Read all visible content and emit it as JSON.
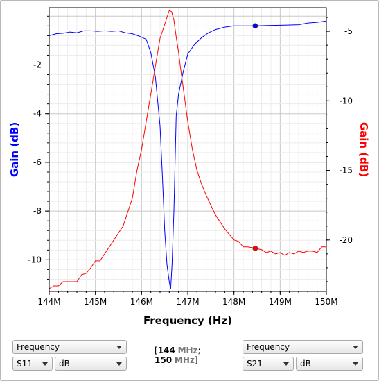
{
  "chart_data": {
    "type": "line",
    "xlabel": "Frequency (Hz)",
    "xlim": [
      144,
      150
    ],
    "x_ticks": [
      "144M",
      "145M",
      "146M",
      "147M",
      "148M",
      "149M",
      "150M"
    ],
    "y_left": {
      "label": "Gain (dB)",
      "color": "#0000ff",
      "lim": [
        -11.3,
        0.35
      ],
      "ticks": [
        "-2",
        "-4",
        "-6",
        "-8",
        "-10"
      ]
    },
    "y_right": {
      "label": "Gain (dB)",
      "color": "#ff0000",
      "lim": [
        -23.7,
        -3.3
      ],
      "ticks": [
        "-5",
        "-10",
        "-15",
        "-20"
      ]
    },
    "grid": true,
    "series": [
      {
        "axis": "left",
        "color": "#0000ff",
        "x": [
          144,
          144.15,
          144.3,
          144.45,
          144.6,
          144.75,
          144.9,
          145.05,
          145.2,
          145.35,
          145.5,
          145.65,
          145.8,
          145.95,
          146.1,
          146.2,
          146.3,
          146.4,
          146.45,
          146.5,
          146.55,
          146.6,
          146.63,
          146.66,
          146.7,
          146.75,
          146.8,
          146.9,
          147.0,
          147.15,
          147.3,
          147.45,
          147.6,
          147.8,
          148.0,
          148.2,
          148.46,
          148.8,
          149.1,
          149.4,
          149.6,
          149.8,
          150.0
        ],
        "y": [
          -0.8,
          -0.72,
          -0.7,
          -0.65,
          -0.68,
          -0.6,
          -0.6,
          -0.62,
          -0.6,
          -0.62,
          -0.6,
          -0.68,
          -0.72,
          -0.82,
          -0.95,
          -1.5,
          -2.5,
          -4.5,
          -6.5,
          -8.8,
          -10.2,
          -10.9,
          -11.2,
          -10.2,
          -8.0,
          -4.1,
          -3.2,
          -2.3,
          -1.55,
          -1.15,
          -0.88,
          -0.68,
          -0.55,
          -0.45,
          -0.4,
          -0.4,
          -0.4,
          -0.38,
          -0.37,
          -0.35,
          -0.28,
          -0.25,
          -0.2
        ]
      },
      {
        "axis": "right",
        "color": "#ff0000",
        "x": [
          144,
          144.1,
          144.2,
          144.3,
          144.4,
          144.5,
          144.6,
          144.7,
          144.8,
          144.9,
          145.0,
          145.1,
          145.2,
          145.3,
          145.4,
          145.5,
          145.6,
          145.7,
          145.8,
          145.9,
          146.0,
          146.1,
          146.2,
          146.3,
          146.4,
          146.5,
          146.55,
          146.6,
          146.65,
          146.7,
          146.75,
          146.8,
          146.85,
          146.9,
          147.0,
          147.1,
          147.2,
          147.3,
          147.4,
          147.5,
          147.6,
          147.7,
          147.8,
          147.9,
          148.0,
          148.1,
          148.2,
          148.3,
          148.46,
          148.6,
          148.7,
          148.8,
          148.9,
          149.0,
          149.1,
          149.2,
          149.3,
          149.4,
          149.5,
          149.6,
          149.7,
          149.8,
          149.9,
          150.0
        ],
        "y": [
          -23.5,
          -23.3,
          -23.3,
          -23.0,
          -23.0,
          -23.0,
          -23.0,
          -22.5,
          -22.4,
          -22.0,
          -21.5,
          -21.5,
          -21.0,
          -20.5,
          -20.0,
          -19.5,
          -19.0,
          -18.0,
          -17.0,
          -15.0,
          -13.5,
          -11.5,
          -9.5,
          -7.5,
          -5.5,
          -4.5,
          -4.0,
          -3.5,
          -3.6,
          -4.2,
          -5.4,
          -6.5,
          -7.8,
          -9.0,
          -11.5,
          -13.5,
          -15.0,
          -16.0,
          -16.8,
          -17.5,
          -18.2,
          -18.7,
          -19.2,
          -19.6,
          -20.0,
          -20.1,
          -20.5,
          -20.5,
          -20.6,
          -20.7,
          -20.9,
          -20.8,
          -21.0,
          -20.9,
          -21.1,
          -20.9,
          -21.0,
          -20.8,
          -20.9,
          -20.8,
          -20.8,
          -20.9,
          -20.5,
          -20.5
        ]
      }
    ],
    "markers": [
      {
        "axis": "left",
        "color": "#0000ff",
        "x": 148.46,
        "y": -0.4
      },
      {
        "axis": "right",
        "color": "#ff0000",
        "x": 148.46,
        "y": -20.6
      }
    ]
  },
  "controls": {
    "left": {
      "domain_select": "Frequency",
      "param_select": "S11",
      "format_select": "dB"
    },
    "range": {
      "start_value": "144",
      "start_unit": "MHz",
      "separator": ";",
      "stop_value": "150",
      "stop_unit": "MHz"
    },
    "right": {
      "domain_select": "Frequency",
      "param_select": "S21",
      "format_select": "dB"
    }
  }
}
